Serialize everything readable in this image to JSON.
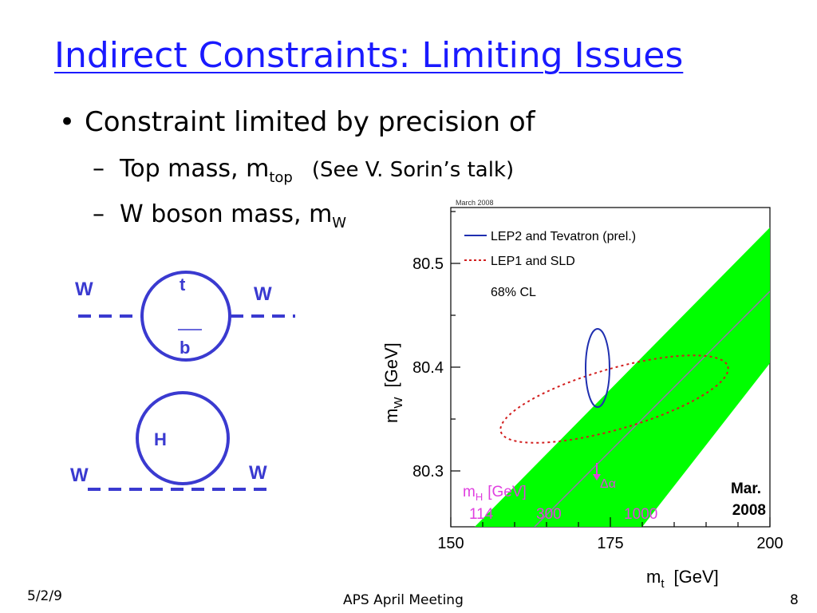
{
  "title": "Indirect Constraints: Limiting Issues",
  "bullet": {
    "mark": "•",
    "text": "Constraint limited by precision of"
  },
  "subbullets": [
    {
      "dash": "–",
      "text": "Top mass, m",
      "sub": "top",
      "note": "(See V. Sorin’s talk)"
    },
    {
      "dash": "–",
      "text": "W boson mass, m",
      "sub": "W"
    }
  ],
  "diagram1": {
    "left_label": "W",
    "right_label": "W",
    "top_label": "t",
    "bottom_label": "b"
  },
  "diagram2": {
    "left_label": "W",
    "right_label": "W",
    "loop_label": "H"
  },
  "plot": {
    "header": "March 2008",
    "legend": [
      {
        "label": "LEP2 and Tevatron (prel.)",
        "color": "#1f2fb0",
        "style": "solid"
      },
      {
        "label": "LEP1 and SLD",
        "color": "#d21e1e",
        "style": "dotted"
      }
    ],
    "cl_label": "68% CL",
    "x_ticks": [
      "150",
      "175",
      "200"
    ],
    "y_ticks": [
      "80.3",
      "80.4",
      "80.5"
    ],
    "x_axis_label": "m",
    "x_axis_sub": "t",
    "x_axis_unit": "[GeV]",
    "y_axis_label": "m",
    "y_axis_sub": "W",
    "y_axis_unit": "[GeV]",
    "mh_label": "m",
    "mh_sub": "H",
    "mh_unit": "[GeV]",
    "mh_values": [
      "114",
      "300",
      "1000"
    ],
    "delta_alpha": "Δα",
    "stamp_line1": "Mar.",
    "stamp_line2": "2008",
    "band_color": "#00ff00",
    "mh_color": "#e040e0"
  },
  "footer": {
    "date": "5/2/9",
    "center": "APS April Meeting",
    "page": "8"
  }
}
